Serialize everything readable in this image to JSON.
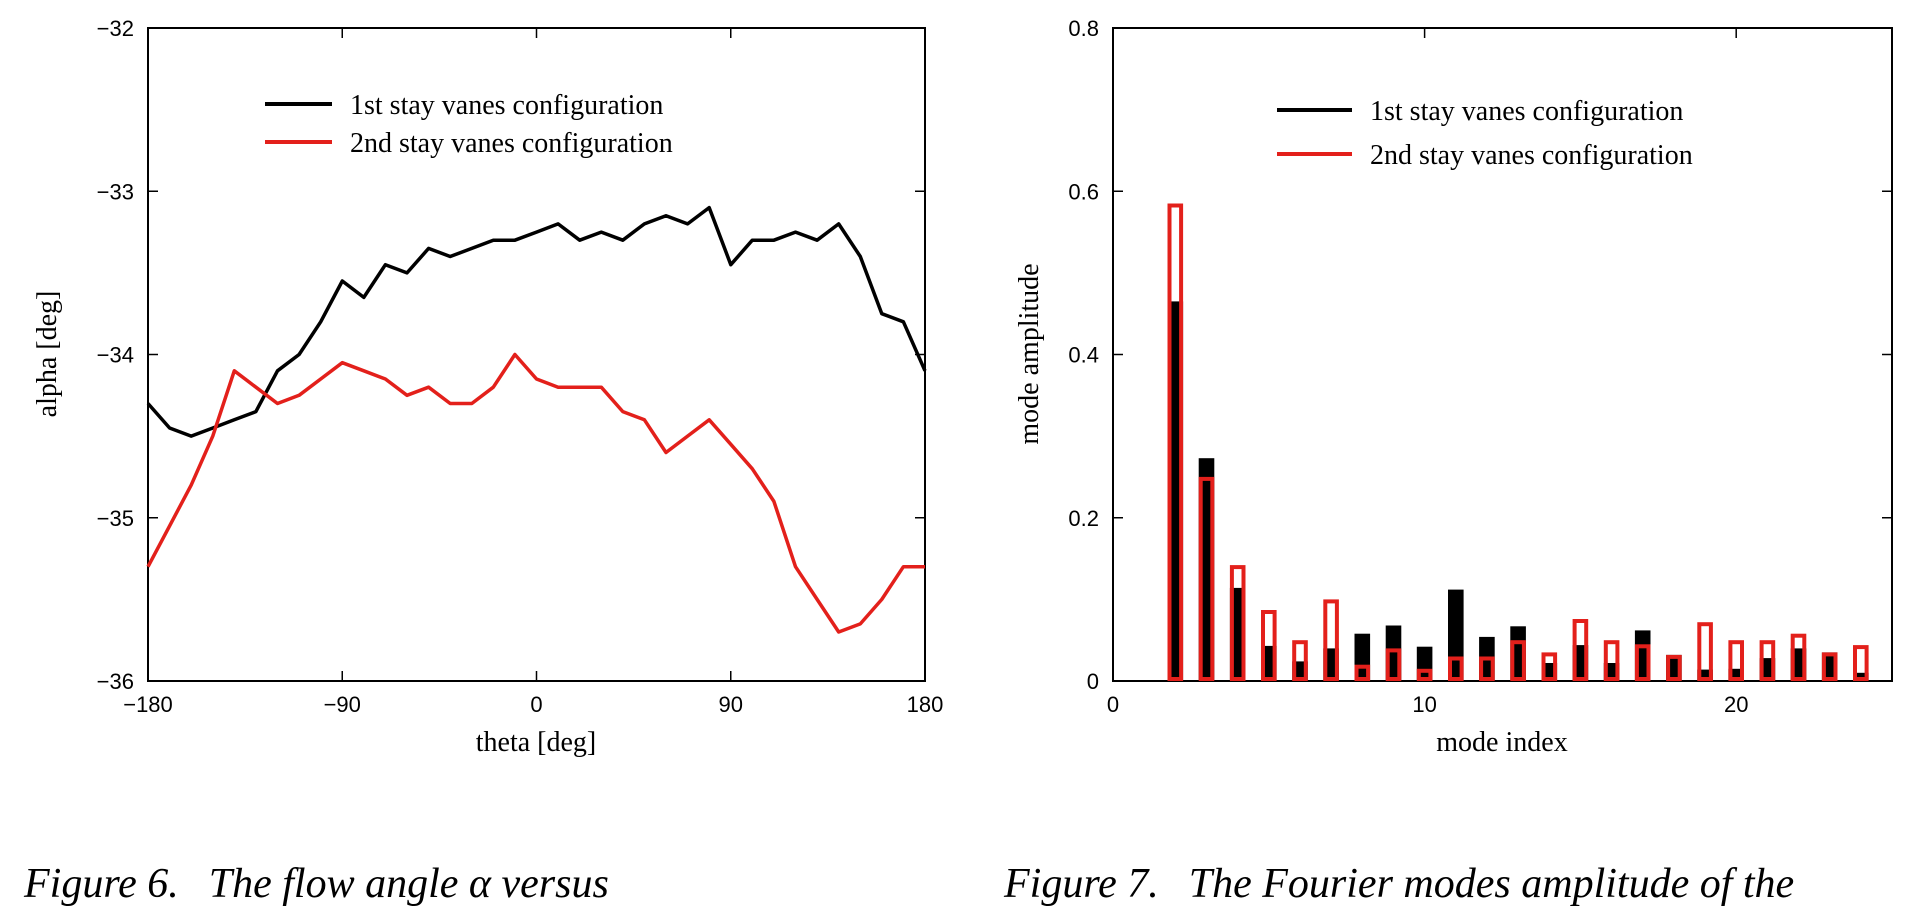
{
  "colors": {
    "series1": "#000000",
    "series2": "#e3201b",
    "axes": "#000000",
    "background": "#ffffff"
  },
  "chart_data": [
    {
      "type": "line",
      "title": "",
      "xlabel": "theta [deg]",
      "ylabel": "alpha [deg]",
      "xlim": [
        -180,
        180
      ],
      "ylim": [
        -36,
        -32
      ],
      "xticks": [
        -180,
        -90,
        0,
        90,
        180
      ],
      "xtick_labels": [
        "−180",
        "−90",
        "0",
        "90",
        "180"
      ],
      "yticks": [
        -36,
        -35,
        -34,
        -33,
        -32
      ],
      "ytick_labels": [
        "−36",
        "−35",
        "−34",
        "−33",
        "−32"
      ],
      "grid": false,
      "legend_position": "top",
      "series": [
        {
          "name": "1st stay vanes configuration",
          "color": "#000000",
          "x": [
            -180,
            -170,
            -160,
            -150,
            -140,
            -130,
            -120,
            -110,
            -100,
            -90,
            -80,
            -70,
            -60,
            -50,
            -40,
            -30,
            -20,
            -10,
            0,
            10,
            20,
            30,
            40,
            50,
            60,
            70,
            80,
            90,
            100,
            110,
            120,
            130,
            140,
            150,
            160,
            170,
            180
          ],
          "y": [
            -34.3,
            -34.45,
            -34.5,
            -34.45,
            -34.4,
            -34.35,
            -34.1,
            -34.0,
            -33.8,
            -33.55,
            -33.65,
            -33.45,
            -33.5,
            -33.35,
            -33.4,
            -33.35,
            -33.3,
            -33.3,
            -33.25,
            -33.2,
            -33.3,
            -33.25,
            -33.3,
            -33.2,
            -33.15,
            -33.2,
            -33.1,
            -33.45,
            -33.3,
            -33.3,
            -33.25,
            -33.3,
            -33.2,
            -33.4,
            -33.75,
            -33.8,
            -34.1
          ]
        },
        {
          "name": "2nd stay vanes configuration",
          "color": "#e3201b",
          "x": [
            -180,
            -170,
            -160,
            -150,
            -140,
            -130,
            -120,
            -110,
            -100,
            -90,
            -80,
            -70,
            -60,
            -50,
            -40,
            -30,
            -20,
            -10,
            0,
            10,
            20,
            30,
            40,
            50,
            60,
            70,
            80,
            90,
            100,
            110,
            120,
            130,
            140,
            150,
            160,
            170,
            180
          ],
          "y": [
            -35.3,
            -35.05,
            -34.8,
            -34.5,
            -34.1,
            -34.2,
            -34.3,
            -34.25,
            -34.15,
            -34.05,
            -34.1,
            -34.15,
            -34.25,
            -34.2,
            -34.3,
            -34.3,
            -34.2,
            -34.0,
            -34.15,
            -34.2,
            -34.2,
            -34.2,
            -34.35,
            -34.4,
            -34.6,
            -34.5,
            -34.4,
            -34.55,
            -34.7,
            -34.9,
            -35.3,
            -35.5,
            -35.7,
            -35.65,
            -35.5,
            -35.3,
            -35.3
          ]
        }
      ]
    },
    {
      "type": "bar",
      "title": "",
      "xlabel": "mode index",
      "ylabel": "mode amplitude",
      "xlim": [
        0,
        25
      ],
      "ylim": [
        0,
        0.8
      ],
      "xticks": [
        0,
        10,
        20
      ],
      "xtick_labels": [
        "0",
        "10",
        "20"
      ],
      "yticks": [
        0,
        0.2,
        0.4,
        0.6,
        0.8
      ],
      "ytick_labels": [
        "0",
        "0.2",
        "0.4",
        "0.6",
        "0.8"
      ],
      "grid": false,
      "legend_position": "top-right",
      "categories": [
        2,
        3,
        4,
        5,
        6,
        7,
        8,
        9,
        10,
        11,
        12,
        13,
        14,
        15,
        16,
        17,
        18,
        19,
        20,
        21,
        22,
        23,
        24
      ],
      "series": [
        {
          "name": "1st stay vanes configuration",
          "color": "#000000",
          "style": "filled",
          "values": [
            0.465,
            0.273,
            0.114,
            0.043,
            0.024,
            0.04,
            0.058,
            0.068,
            0.042,
            0.112,
            0.054,
            0.067,
            0.022,
            0.044,
            0.022,
            0.062,
            0.032,
            0.014,
            0.015,
            0.028,
            0.04,
            0.035,
            0.01
          ]
        },
        {
          "name": "2nd stay vanes configuration",
          "color": "#e3201b",
          "style": "outline",
          "values": [
            0.585,
            0.25,
            0.142,
            0.087,
            0.05,
            0.1,
            0.02,
            0.04,
            0.015,
            0.03,
            0.03,
            0.05,
            0.035,
            0.076,
            0.05,
            0.045,
            0.032,
            0.072,
            0.05,
            0.05,
            0.058,
            0.035,
            0.044
          ]
        }
      ]
    }
  ],
  "captions": [
    {
      "number": "Figure 6.",
      "text": "The flow angle α versus"
    },
    {
      "number": "Figure 7.",
      "text": "The Fourier modes amplitude of the"
    }
  ]
}
